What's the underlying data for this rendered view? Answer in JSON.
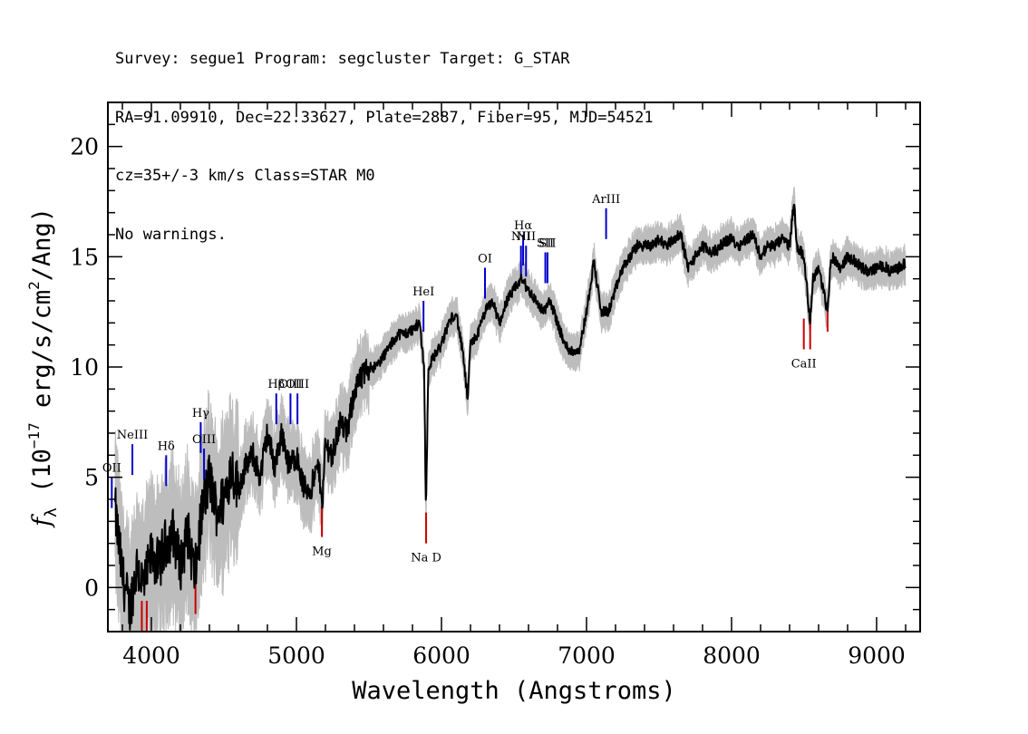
{
  "header": {
    "line1": "Survey: segue1 Program: segcluster Target: G_STAR",
    "line2": "RA=91.09910, Dec=22.33627, Plate=2887, Fiber=95, MJD=54521",
    "line3": "cz=35+/-3 km/s Class=STAR M0",
    "line4": "No warnings."
  },
  "colors": {
    "flux": "#000000",
    "error": "#bdbdbd",
    "emission_lines": "#0000cc",
    "absorption_lines": "#cc0000"
  },
  "chart_data": {
    "type": "line",
    "title": "",
    "xlabel": "Wavelength (Angstroms)",
    "ylabel": "f_λ (10^-17 erg/s/cm^2/Ang)",
    "ylabel_parts": {
      "f": "f",
      "sub": "λ",
      "open": " (10",
      "exp1": "−17",
      "mid": " erg/s/cm",
      "exp2": "2",
      "close": "/Ang)"
    },
    "xlim": [
      3700,
      9300
    ],
    "ylim": [
      -2,
      22
    ],
    "xticks": [
      4000,
      5000,
      6000,
      7000,
      8000,
      9000
    ],
    "yticks": [
      0,
      5,
      10,
      15,
      20
    ],
    "grid": false,
    "series": [
      {
        "x": [
          3750,
          3800,
          3850,
          3900,
          3950,
          4000,
          4050,
          4100,
          4150,
          4200,
          4250,
          4300,
          4350,
          4400,
          4450,
          4500,
          4550,
          4600,
          4650,
          4700,
          4750,
          4800,
          4850,
          4900,
          4950,
          5000,
          5050,
          5100,
          5150,
          5180,
          5200,
          5250,
          5300,
          5350,
          5400,
          5450,
          5500,
          5550,
          5600,
          5650,
          5700,
          5750,
          5800,
          5850,
          5880,
          5893,
          5910,
          5950,
          6000,
          6050,
          6100,
          6150,
          6180,
          6200,
          6250,
          6300,
          6350,
          6400,
          6450,
          6500,
          6550,
          6600,
          6650,
          6700,
          6750,
          6800,
          6850,
          6900,
          6950,
          7000,
          7050,
          7100,
          7150,
          7200,
          7250,
          7300,
          7350,
          7400,
          7450,
          7500,
          7550,
          7600,
          7650,
          7700,
          7750,
          7800,
          7850,
          7900,
          7950,
          8000,
          8050,
          8100,
          8150,
          8200,
          8250,
          8300,
          8350,
          8400,
          8430,
          8450,
          8500,
          8542,
          8560,
          8600,
          8662,
          8680,
          8700,
          8750,
          8800,
          8850,
          8900,
          8950,
          9000,
          9050,
          9100,
          9150,
          9200
        ],
        "y": [
          3.5,
          0.5,
          -1,
          1,
          0,
          1.5,
          1,
          2,
          2.5,
          1,
          2.5,
          0.5,
          3.5,
          5,
          3.5,
          4,
          5.5,
          4.5,
          5.5,
          6,
          5,
          7,
          5.5,
          7,
          5.5,
          6,
          4.5,
          4.5,
          5.5,
          4,
          6.5,
          6,
          7.5,
          7,
          9,
          9.5,
          10,
          10,
          10.5,
          11,
          11.5,
          11.5,
          11.7,
          12,
          10,
          3.5,
          10,
          10.5,
          11,
          12,
          12.5,
          10.5,
          8.5,
          11,
          11.5,
          12.5,
          13,
          12,
          13,
          13.5,
          14,
          13.5,
          13,
          12.5,
          13,
          12,
          11,
          10.7,
          10.8,
          12.5,
          14.8,
          12.5,
          12.5,
          13.5,
          14.5,
          15,
          15.5,
          15.5,
          15.5,
          15.8,
          15.5,
          15.8,
          16,
          14.5,
          15,
          15.5,
          15.2,
          15.3,
          15.7,
          15.8,
          15.5,
          15.8,
          16,
          15,
          15.5,
          15.5,
          15.8,
          15.5,
          17.5,
          15.5,
          15,
          12,
          14,
          14.5,
          12.5,
          14.5,
          15,
          14.5,
          15,
          14.8,
          14.5,
          14.3,
          14.5,
          14.6,
          14.3,
          14.5,
          14.7
        ]
      }
    ],
    "emission_lines": [
      {
        "label": "OII",
        "wavelength": 3727,
        "level": 5.0
      },
      {
        "label": "NeIII",
        "wavelength": 3869,
        "level": 6.5
      },
      {
        "label": "Hδ",
        "wavelength": 4102,
        "level": 6.0
      },
      {
        "label": "Hγ",
        "wavelength": 4340,
        "level": 7.5
      },
      {
        "label": "OIII",
        "wavelength": 4363,
        "level": 6.3
      },
      {
        "label": "Hβ",
        "wavelength": 4861,
        "level": 8.8
      },
      {
        "label": "OIII",
        "wavelength": 4959,
        "level": 8.8
      },
      {
        "label": "OIII",
        "wavelength": 5007,
        "level": 8.8
      },
      {
        "label": "HeI",
        "wavelength": 5876,
        "level": 13.0
      },
      {
        "label": "OI",
        "wavelength": 6300,
        "level": 14.5
      },
      {
        "label": "NII",
        "wavelength": 6548,
        "level": 15.5
      },
      {
        "label": "Hα",
        "wavelength": 6563,
        "level": 16.0
      },
      {
        "label": "NII",
        "wavelength": 6583,
        "level": 15.5
      },
      {
        "label": "SII",
        "wavelength": 6716,
        "level": 15.2
      },
      {
        "label": "SII",
        "wavelength": 6731,
        "level": 15.2
      },
      {
        "label": "ArIII",
        "wavelength": 7135,
        "level": 17.2
      }
    ],
    "absorption_lines": [
      {
        "label": "",
        "wavelength": 3934,
        "level": -2.0
      },
      {
        "label": "",
        "wavelength": 3968,
        "level": -2.0
      },
      {
        "label": "",
        "wavelength": 4304,
        "level": -1.2
      },
      {
        "label": "Mg",
        "wavelength": 5175,
        "level": 2.3
      },
      {
        "label": "Na D",
        "wavelength": 5894,
        "level": 2.0
      },
      {
        "label": "CaII",
        "wavelength": 8498,
        "level": 10.8
      },
      {
        "label": "",
        "wavelength": 8542,
        "level": 10.8
      },
      {
        "label": "",
        "wavelength": 8662,
        "level": 11.6
      }
    ]
  }
}
